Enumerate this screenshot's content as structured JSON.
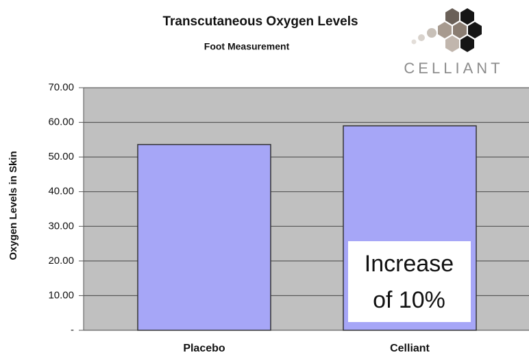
{
  "chart_data": {
    "type": "bar",
    "title": "Transcutaneous Oxygen Levels",
    "subtitle": "Foot Measurement",
    "y_label": "Oxygen Levels in Skin",
    "logo": "CELLIANT",
    "annotation": [
      "Increase",
      "of 10%"
    ],
    "categories": [
      "Placebo",
      "Celliant"
    ],
    "values": [
      53.6,
      59.0
    ],
    "color": "#a6a6f7",
    "ylim": [
      0,
      70
    ],
    "yticks": [
      {
        "value": 0,
        "label": "-"
      },
      {
        "value": 10,
        "label": "10.00"
      },
      {
        "value": 20,
        "label": "20.00"
      },
      {
        "value": 30,
        "label": "30.00"
      },
      {
        "value": 40,
        "label": "40.00"
      },
      {
        "value": 50,
        "label": "50.00"
      },
      {
        "value": 60,
        "label": "60.00"
      },
      {
        "value": 70,
        "label": "70.00"
      }
    ],
    "grid": true
  }
}
